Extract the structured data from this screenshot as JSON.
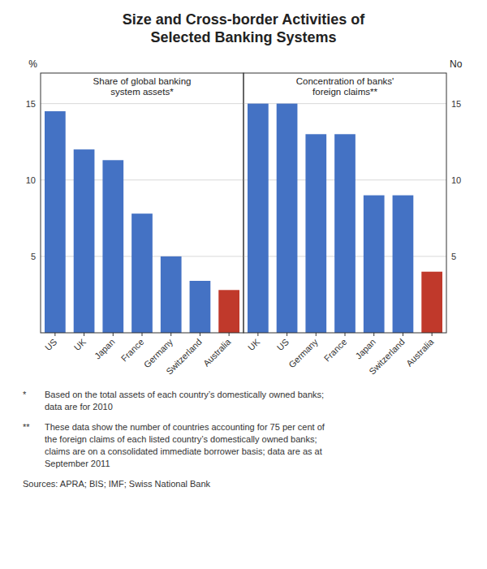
{
  "title": "Size and Cross-border Activities of\nSelected Banking Systems",
  "chart_data": [
    {
      "type": "bar",
      "title": "Share of global banking\nsystem assets*",
      "y_label": "%",
      "categories": [
        "US",
        "UK",
        "Japan",
        "France",
        "Germany",
        "Switzerland",
        "Australia"
      ],
      "values": [
        14.5,
        12.0,
        11.3,
        7.8,
        5.0,
        3.4,
        2.8
      ],
      "colors": [
        "#4472C4",
        "#4472C4",
        "#4472C4",
        "#4472C4",
        "#4472C4",
        "#4472C4",
        "#C0392B"
      ],
      "ylim": [
        0,
        17
      ],
      "yticks": [
        5,
        10,
        15
      ],
      "grid": true
    },
    {
      "type": "bar",
      "title": "Concentration of banks'\nforeign claims**",
      "y_label": "No",
      "categories": [
        "UK",
        "US",
        "Germany",
        "France",
        "Japan",
        "Switzerland",
        "Australia"
      ],
      "values": [
        15,
        15,
        13,
        13,
        9,
        9,
        4
      ],
      "colors": [
        "#4472C4",
        "#4472C4",
        "#4472C4",
        "#4472C4",
        "#4472C4",
        "#4472C4",
        "#C0392B"
      ],
      "ylim": [
        0,
        17
      ],
      "yticks": [
        5,
        10,
        15
      ],
      "grid": true
    }
  ],
  "annotations": [
    {
      "label": "*",
      "text": "Based on the total assets of each country’s domestically owned banks;\ndata are for 2010"
    },
    {
      "label": "**",
      "text": "These data show the number of countries accounting for 75 per cent of\nthe foreign claims of each listed country’s domestically owned banks;\nclaims are on a consolidated immediate borrower basis; data are as at\nSeptember 2011"
    },
    {
      "text": "Sources: APRA; BIS; IMF; Swiss National Bank"
    }
  ]
}
